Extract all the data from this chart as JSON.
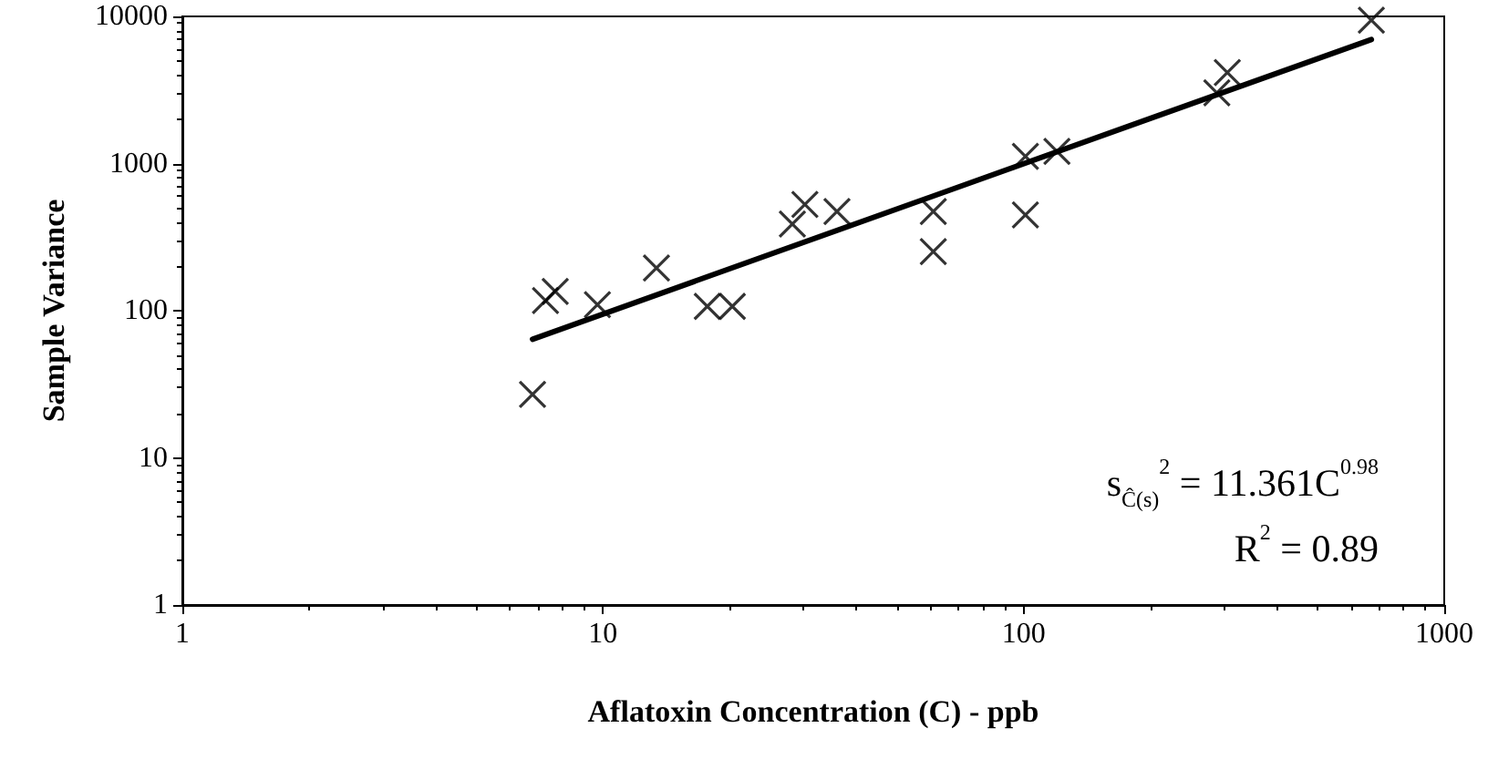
{
  "chart_data": {
    "type": "scatter",
    "xlabel": "Aflatoxin Concentration (C) - ppb",
    "ylabel": "Sample Variance",
    "log": "xy",
    "xlim": [
      1,
      1000
    ],
    "xticks": [
      1,
      10,
      100,
      1000
    ],
    "ylim": [
      1,
      10000
    ],
    "yticks": [
      1,
      10,
      100,
      1000,
      10000
    ],
    "grid": false,
    "marker": "cross",
    "series": [
      {
        "color": "#000000",
        "x": [
          6.8,
          7.3,
          7.7,
          9.7,
          13.4,
          17.7,
          20.3,
          28.2,
          30.2,
          36,
          61,
          61,
          101,
          101,
          120,
          288,
          305,
          671
        ],
        "values": [
          27,
          117,
          135,
          110,
          195,
          107,
          107,
          388,
          527,
          473,
          473,
          252,
          1120,
          447,
          1210,
          3020,
          4150,
          9440
        ]
      },
      {
        "type": "line",
        "color": "#000000",
        "marker": "none",
        "line_style": "solid",
        "x": [
          6.8,
          671
        ],
        "values": [
          64,
          6970
        ]
      }
    ],
    "annotations": [
      "s$_{Ĉ(s)}$$^{2}$ = 11.361C$^{0.98}$",
      "R$^{2}$ = 0.89"
    ]
  }
}
